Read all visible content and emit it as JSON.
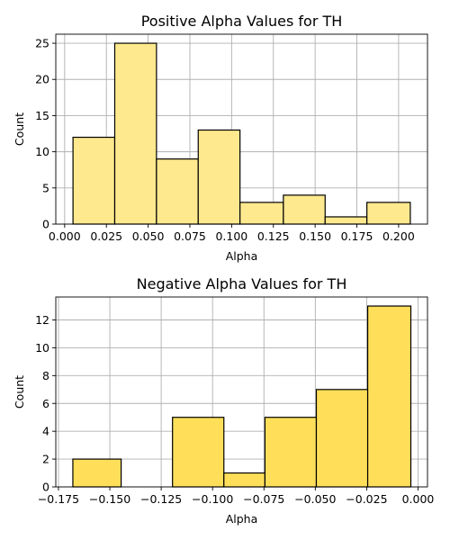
{
  "chart_data": [
    {
      "type": "bar",
      "title": "Positive Alpha Values for TH",
      "xlabel": "Alpha",
      "ylabel": "Count",
      "color": "#ffe98f",
      "bins": [
        {
          "from": 0.005,
          "to": 0.03,
          "count": 12
        },
        {
          "from": 0.03,
          "to": 0.055,
          "count": 25
        },
        {
          "from": 0.055,
          "to": 0.08,
          "count": 9
        },
        {
          "from": 0.08,
          "to": 0.105,
          "count": 13
        },
        {
          "from": 0.105,
          "to": 0.131,
          "count": 3
        },
        {
          "from": 0.131,
          "to": 0.156,
          "count": 4
        },
        {
          "from": 0.156,
          "to": 0.181,
          "count": 1
        },
        {
          "from": 0.181,
          "to": 0.207,
          "count": 3
        }
      ],
      "xlim": [
        -0.0053,
        0.2173
      ],
      "ylim": [
        0,
        26.25
      ],
      "xticks": [
        0.0,
        0.025,
        0.05,
        0.075,
        0.1,
        0.125,
        0.15,
        0.175,
        0.2
      ],
      "xtick_labels": [
        "0.000",
        "0.025",
        "0.050",
        "0.075",
        "0.100",
        "0.125",
        "0.150",
        "0.175",
        "0.200"
      ],
      "yticks": [
        0,
        5,
        10,
        15,
        20,
        25
      ],
      "ytick_labels": [
        "0",
        "5",
        "10",
        "15",
        "20",
        "25"
      ],
      "grid": true
    },
    {
      "type": "bar",
      "title": "Negative Alpha Values for TH",
      "xlabel": "Alpha",
      "ylabel": "Count",
      "color": "#ffdf5a",
      "bins": [
        {
          "from": -0.168,
          "to": -0.1445,
          "count": 2
        },
        {
          "from": -0.1445,
          "to": -0.1195,
          "count": 0
        },
        {
          "from": -0.1195,
          "to": -0.0945,
          "count": 5
        },
        {
          "from": -0.0945,
          "to": -0.0745,
          "count": 1
        },
        {
          "from": -0.0745,
          "to": -0.0495,
          "count": 5
        },
        {
          "from": -0.0495,
          "to": -0.0245,
          "count": 7
        },
        {
          "from": -0.0245,
          "to": -0.0035,
          "count": 13
        }
      ],
      "xlim": [
        -0.1763,
        0.0046
      ],
      "ylim": [
        0,
        13.65
      ],
      "xticks": [
        -0.175,
        -0.15,
        -0.125,
        -0.1,
        -0.075,
        -0.05,
        -0.025,
        0.0
      ],
      "xtick_labels": [
        "−0.175",
        "−0.150",
        "−0.125",
        "−0.100",
        "−0.075",
        "−0.050",
        "−0.025",
        "0.000"
      ],
      "yticks": [
        0,
        2,
        4,
        6,
        8,
        10,
        12
      ],
      "ytick_labels": [
        "0",
        "2",
        "4",
        "6",
        "8",
        "10",
        "12"
      ],
      "grid": true
    }
  ]
}
